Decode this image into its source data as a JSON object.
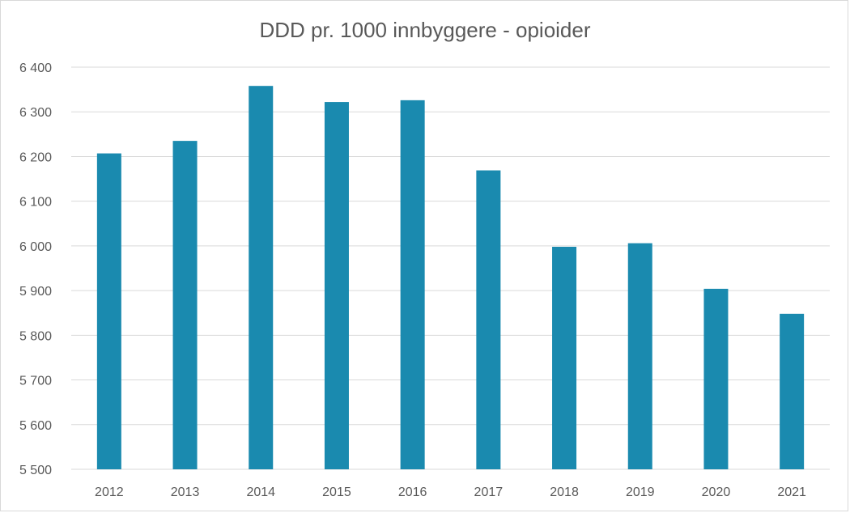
{
  "chart_data": {
    "type": "bar",
    "title": "DDD pr. 1000 innbyggere - opioider",
    "xlabel": "",
    "ylabel": "",
    "categories": [
      "2012",
      "2013",
      "2014",
      "2015",
      "2016",
      "2017",
      "2018",
      "2019",
      "2020",
      "2021"
    ],
    "values": [
      6207,
      6235,
      6358,
      6322,
      6326,
      6169,
      5998,
      6006,
      5904,
      5848
    ],
    "ylim": [
      5500,
      6400
    ],
    "yticks": [
      5500,
      5600,
      5700,
      5800,
      5900,
      6000,
      6100,
      6200,
      6300,
      6400
    ],
    "ytick_labels": [
      "5 500",
      "5 600",
      "5 700",
      "5 800",
      "5 900",
      "6 000",
      "6 100",
      "6 200",
      "6 300",
      "6 400"
    ],
    "grid": true,
    "legend": "none",
    "bar_color": "#1a8aaf",
    "grid_color": "#d9d9d9"
  }
}
